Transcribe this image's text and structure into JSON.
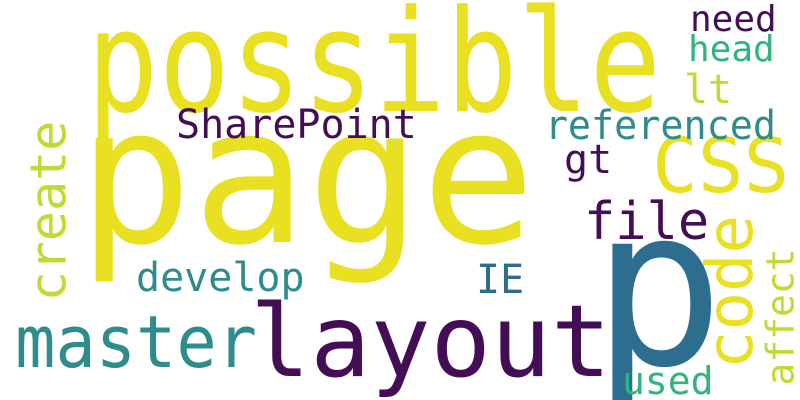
{
  "words": [
    {
      "text": "page",
      "color": "#e8e020"
    },
    {
      "text": "possible",
      "color": "#e8e020"
    },
    {
      "text": "p",
      "color": "#2d6e8e"
    },
    {
      "text": "layout",
      "color": "#440e57"
    },
    {
      "text": "master",
      "color": "#2f8c8c"
    },
    {
      "text": "CSS",
      "color": "#e8e020"
    },
    {
      "text": "code",
      "color": "#e8e020"
    },
    {
      "text": "create",
      "color": "#bedc30"
    },
    {
      "text": "SharePoint",
      "color": "#440e57"
    },
    {
      "text": "referenced",
      "color": "#2f8c8c"
    },
    {
      "text": "file",
      "color": "#440e57"
    },
    {
      "text": "develop",
      "color": "#2f8c8c"
    },
    {
      "text": "need",
      "color": "#440e57"
    },
    {
      "text": "head",
      "color": "#2fb47c"
    },
    {
      "text": "lt",
      "color": "#bedc30"
    },
    {
      "text": "gt",
      "color": "#440e57"
    },
    {
      "text": "IE",
      "color": "#2d6e8e"
    },
    {
      "text": "used",
      "color": "#2fb47c"
    },
    {
      "text": "affect",
      "color": "#bedc30"
    }
  ]
}
